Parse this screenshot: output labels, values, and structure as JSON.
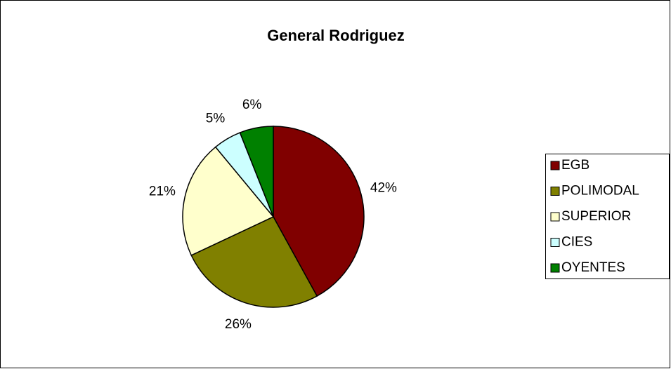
{
  "chart_data": {
    "type": "pie",
    "title": "General Rodriguez",
    "categories": [
      "EGB",
      "POLIMODAL",
      "SUPERIOR",
      "CIES",
      "OYENTES"
    ],
    "values": [
      42,
      26,
      21,
      5,
      6
    ],
    "value_labels": [
      "42%",
      "26%",
      "21%",
      "5%",
      "6%"
    ],
    "colors": [
      "#800000",
      "#808000",
      "#ffffcc",
      "#ccffff",
      "#008000"
    ],
    "legend": "right"
  }
}
